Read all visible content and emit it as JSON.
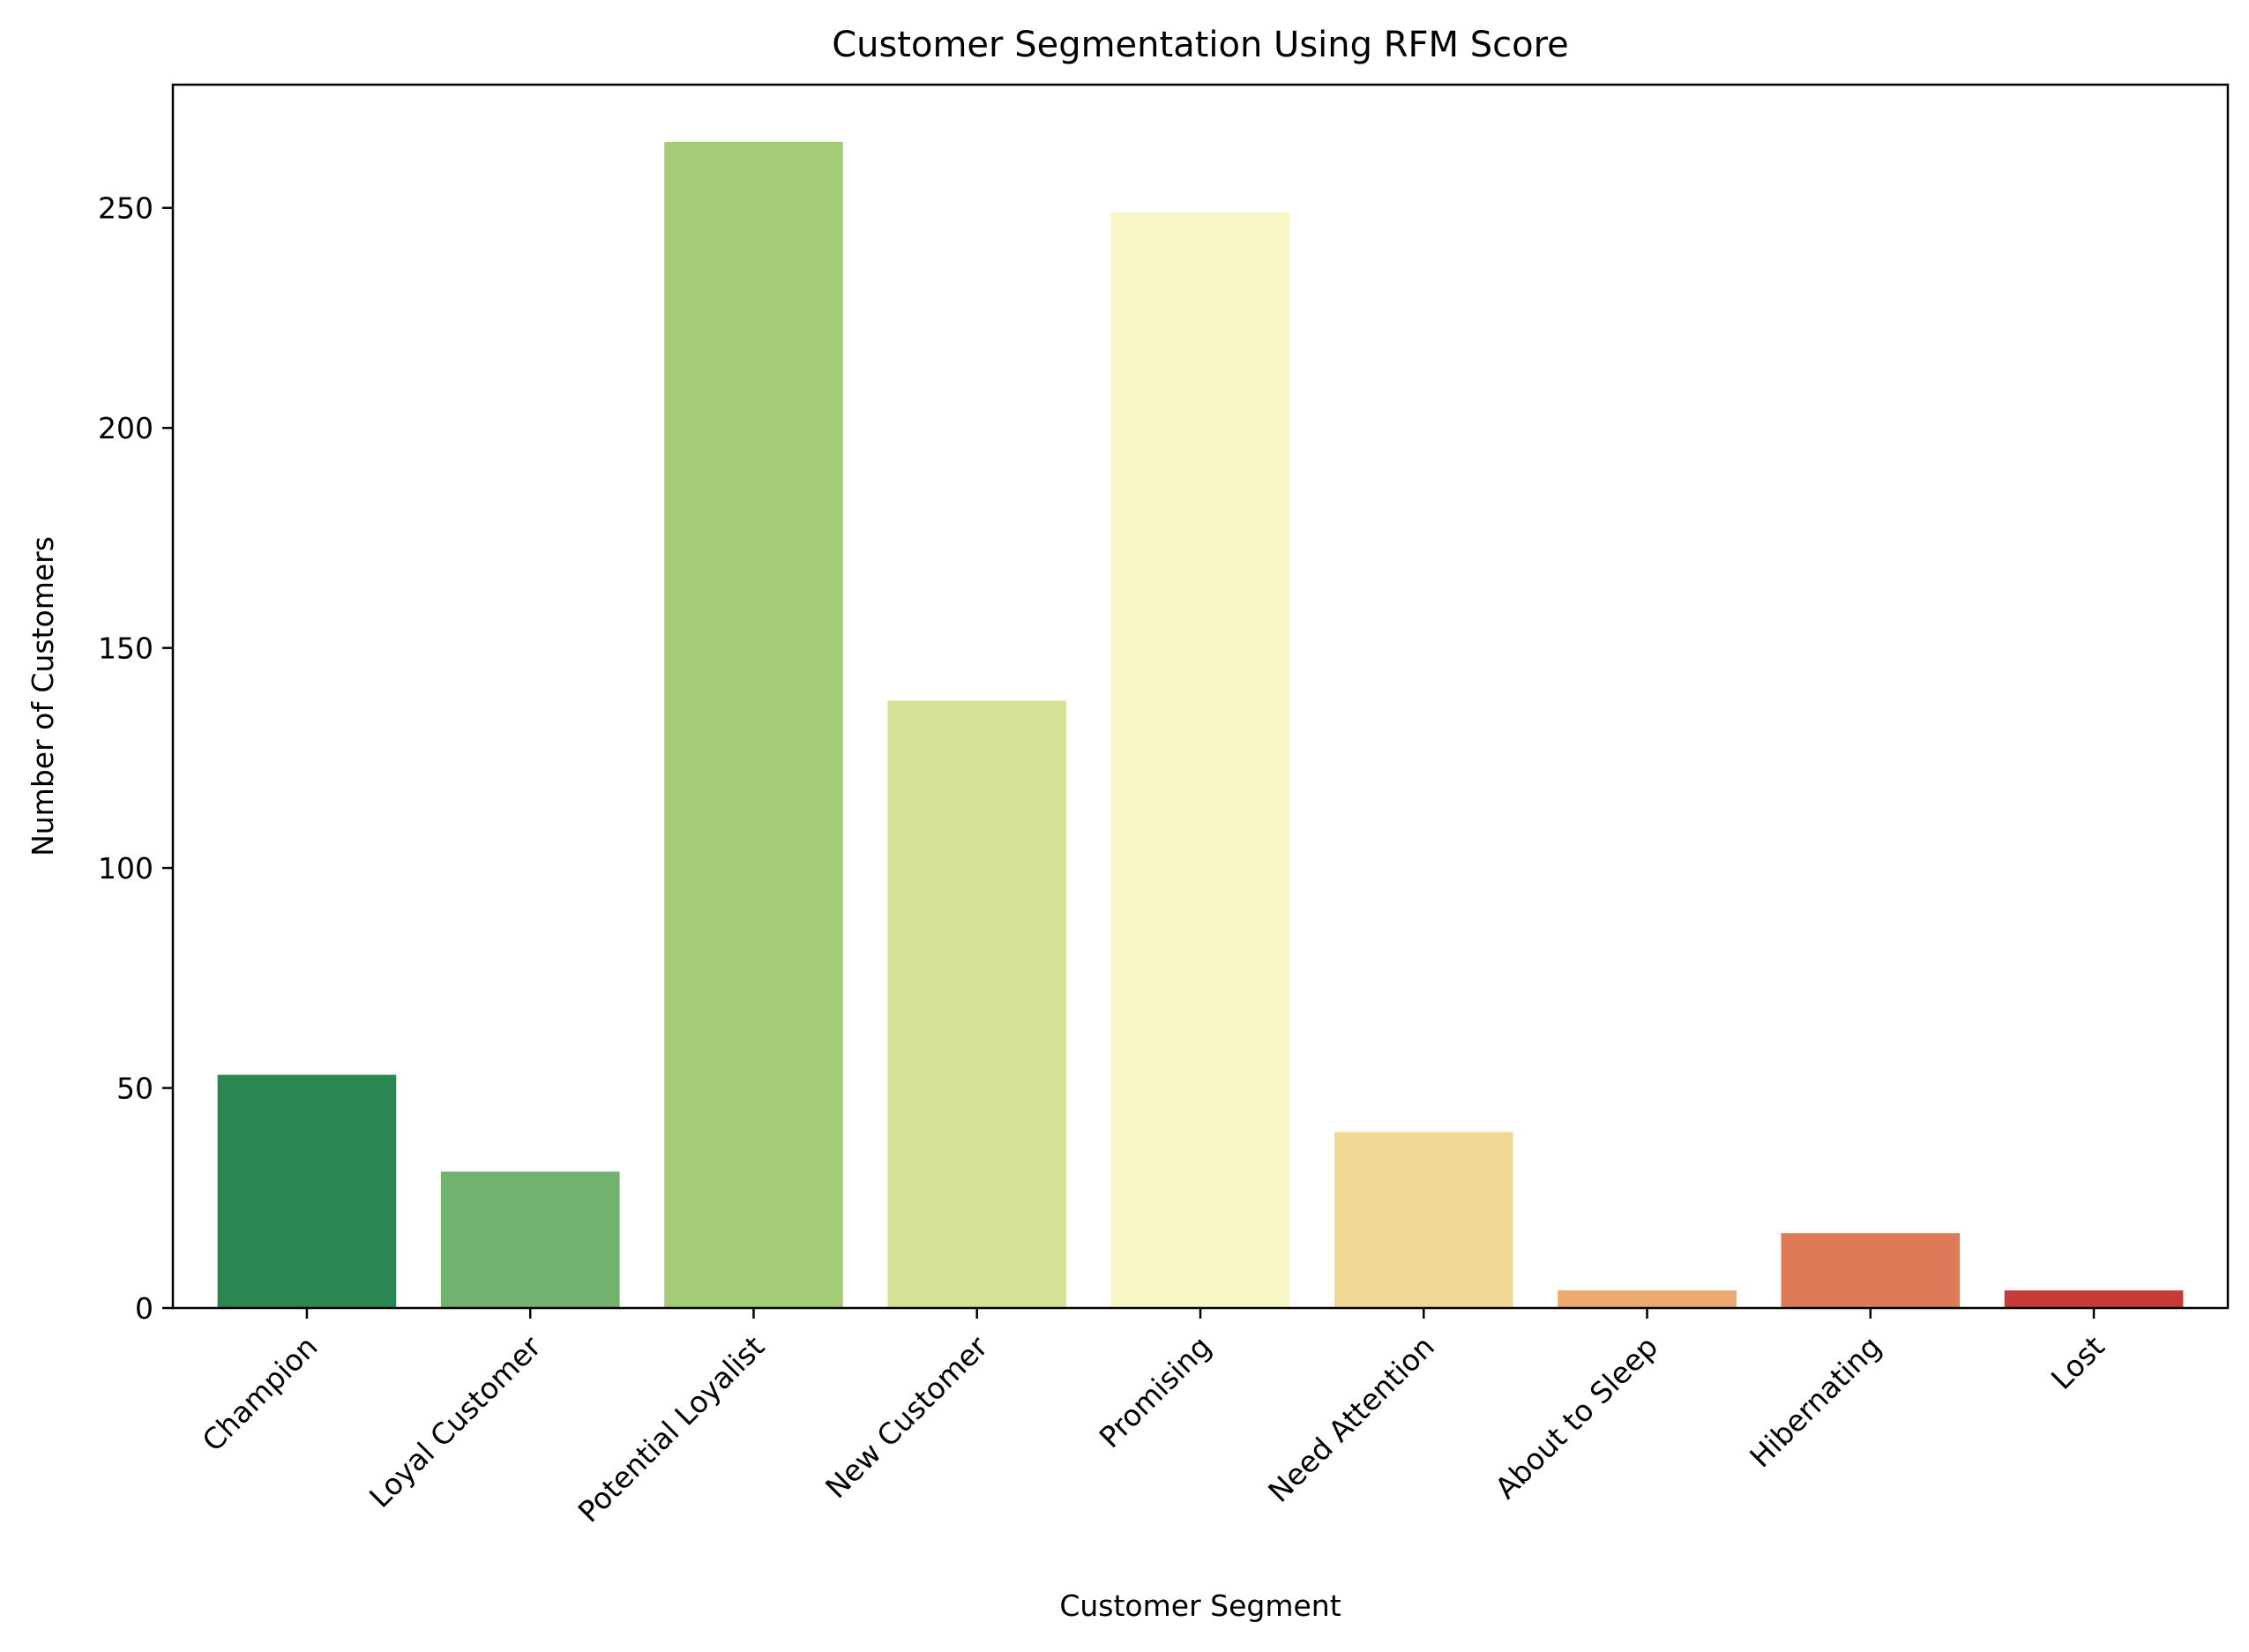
{
  "chart_data": {
    "type": "bar",
    "title": "Customer Segmentation Using RFM Score",
    "xlabel": "Customer Segment",
    "ylabel": "Number of Customers",
    "categories": [
      "Champion",
      "Loyal Customer",
      "Potential Loyalist",
      "New Customer",
      "Promising",
      "Need Attention",
      "About to Sleep",
      "Hibernating",
      "Lost"
    ],
    "values": [
      53,
      31,
      265,
      138,
      249,
      40,
      4,
      17,
      4
    ],
    "colors": [
      "#2a8752",
      "#71b26f",
      "#a4cc77",
      "#d4e297",
      "#f7f6c5",
      "#f1d895",
      "#eca970",
      "#df7a59",
      "#c63b38"
    ],
    "ylim": [
      0,
      278
    ],
    "yticks": [
      0,
      50,
      100,
      150,
      200,
      250
    ],
    "grid": false,
    "legend": "none"
  }
}
